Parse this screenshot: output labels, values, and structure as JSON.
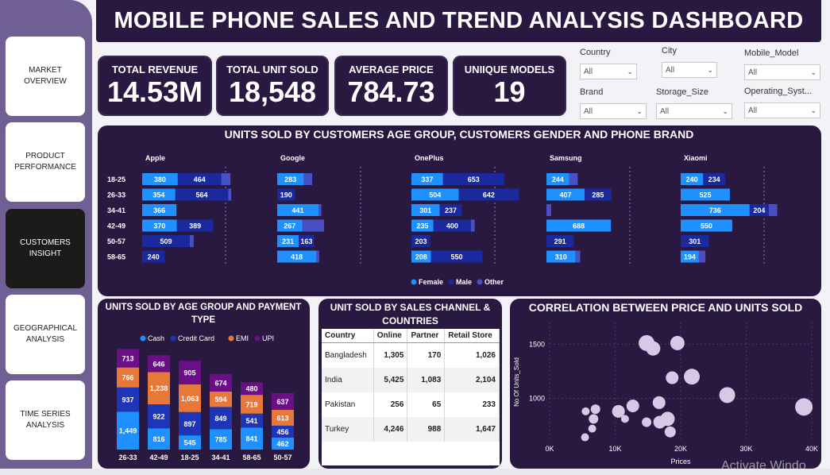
{
  "title": "MOBILE PHONE SALES AND TREND ANALYSIS DASHBOARD",
  "nav": [
    {
      "label": "MARKET OVERVIEW",
      "active": false
    },
    {
      "label": "PRODUCT PERFORMANCE",
      "active": false
    },
    {
      "label": "CUSTOMERS INSIGHT",
      "active": true
    },
    {
      "label": "GEOGRAPHICAL ANALYSIS",
      "active": false
    },
    {
      "label": "TIME SERIES ANALYSIS",
      "active": false
    }
  ],
  "kpis": [
    {
      "label": "TOTAL REVENUE",
      "value": "14.53M"
    },
    {
      "label": "TOTAL UNIT SOLD",
      "value": "18,548"
    },
    {
      "label": "AVERAGE PRICE",
      "value": "784.73"
    },
    {
      "label": "UNIIQUE MODELS",
      "value": "19"
    }
  ],
  "filters": [
    {
      "label": "Country",
      "value": "All"
    },
    {
      "label": "City",
      "value": "All"
    },
    {
      "label": "Mobile_Model",
      "value": "All"
    },
    {
      "label": "Brand",
      "value": "All"
    },
    {
      "label": "Storage_Size",
      "value": "All"
    },
    {
      "label": "Operating_Syst...",
      "value": "All"
    }
  ],
  "colors": {
    "panel": "#29183f",
    "female": "#1e90ff",
    "male": "#1a2a9c",
    "other": "#4a4fc4",
    "cash": "#1e90ff",
    "credit_card": "#1f35b8",
    "emi": "#e8783a",
    "upi": "#6a0f86",
    "scatter": "#d6c9e6"
  },
  "chart_data": [
    {
      "type": "bar",
      "title": "UNITS SOLD BY CUSTOMERS AGE GROUP, CUSTOMERS GENDER AND PHONE BRAND",
      "orientation": "horizontal",
      "stacked": true,
      "legend": [
        "Female",
        "Male",
        "Other"
      ],
      "legend_position": "bottom",
      "categories": [
        "18-25",
        "26-33",
        "34-41",
        "42-49",
        "50-57",
        "58-65"
      ],
      "brands": [
        {
          "name": "Apple",
          "female": [
            380,
            354,
            366,
            370,
            0,
            0
          ],
          "male": [
            464,
            564,
            0,
            389,
            509,
            240
          ],
          "other": [
            98,
            32,
            0,
            0,
            40,
            0
          ]
        },
        {
          "name": "Google",
          "female": [
            283,
            0,
            441,
            267,
            231,
            418
          ],
          "male": [
            0,
            190,
            0,
            0,
            163,
            0
          ],
          "other": [
            90,
            0,
            30,
            233,
            0,
            30
          ]
        },
        {
          "name": "OnePlus",
          "female": [
            337,
            504,
            301,
            235,
            0,
            208
          ],
          "male": [
            653,
            642,
            237,
            400,
            203,
            550
          ],
          "other": [
            0,
            0,
            0,
            40,
            0,
            0
          ]
        },
        {
          "name": "Samsung",
          "female": [
            244,
            407,
            0,
            688,
            0,
            310
          ],
          "male": [
            0,
            285,
            0,
            0,
            291,
            0
          ],
          "other": [
            90,
            0,
            50,
            0,
            0,
            50
          ]
        },
        {
          "name": "Xiaomi",
          "female": [
            240,
            525,
            736,
            550,
            0,
            194
          ],
          "male": [
            234,
            0,
            204,
            0,
            301,
            0
          ],
          "other": [
            0,
            0,
            90,
            0,
            0,
            70
          ]
        }
      ],
      "labels": [
        [
          "380",
          "464",
          "",
          "",
          "283",
          "",
          "337",
          "653",
          "244",
          "",
          "240",
          "234"
        ],
        [
          "354",
          "564",
          "",
          "190",
          "504",
          "642",
          "407",
          "285",
          "525",
          ""
        ],
        [
          "366",
          "",
          "441",
          "",
          "301",
          "237",
          "",
          "",
          "736",
          "204"
        ],
        [
          "370",
          "389",
          "267",
          "233",
          "235",
          "400",
          "688",
          "",
          "550",
          ""
        ],
        [
          "",
          "509",
          "231",
          "163",
          "",
          "203",
          "",
          "291",
          "",
          "301"
        ],
        [
          "",
          "240",
          "418",
          "",
          "208",
          "550",
          "310",
          "",
          "194",
          ""
        ]
      ]
    },
    {
      "type": "bar",
      "title": "UNITS SOLD BY AGE GROUP AND PAYMENT TYPE",
      "stacked": true,
      "legend_position": "top",
      "categories": [
        "26-33",
        "42-49",
        "18-25",
        "34-41",
        "58-65",
        "50-57"
      ],
      "series": [
        {
          "name": "Cash",
          "values": [
            1449,
            816,
            545,
            785,
            841,
            462
          ]
        },
        {
          "name": "Credit Card",
          "values": [
            937,
            922,
            897,
            849,
            541,
            456
          ]
        },
        {
          "name": "EMI",
          "values": [
            766,
            1238,
            1063,
            594,
            719,
            613
          ]
        },
        {
          "name": "UPI",
          "values": [
            713,
            646,
            905,
            674,
            480,
            637
          ]
        }
      ]
    },
    {
      "type": "table",
      "title": "UNIT SOLD BY SALES CHANNEL & COUNTRIES",
      "columns": [
        "Country",
        "Online",
        "Partner",
        "Retail Store"
      ],
      "rows": [
        [
          "Bangladesh",
          "1,305",
          "170",
          "1,026"
        ],
        [
          "India",
          "5,425",
          "1,083",
          "2,104"
        ],
        [
          "Pakistan",
          "256",
          "65",
          "233"
        ],
        [
          "Turkey",
          "4,246",
          "988",
          "1,647"
        ]
      ]
    },
    {
      "type": "scatter",
      "title": "CORRELATION BETWEEN PRICE AND UNITS SOLD",
      "xlabel": "Prices",
      "ylabel": "No Of Units_Sold",
      "xticks": [
        "0K",
        "10K",
        "20K",
        "30K",
        "40K"
      ],
      "yticks": [
        "1000",
        "1500"
      ],
      "xlim": [
        0,
        40000
      ],
      "ylim": [
        600,
        1700
      ],
      "points": [
        {
          "x": 5400,
          "y": 640,
          "size": 5
        },
        {
          "x": 6500,
          "y": 720,
          "size": 5
        },
        {
          "x": 6700,
          "y": 810,
          "size": 6
        },
        {
          "x": 5500,
          "y": 880,
          "size": 5
        },
        {
          "x": 7000,
          "y": 900,
          "size": 6
        },
        {
          "x": 10500,
          "y": 880,
          "size": 8
        },
        {
          "x": 11500,
          "y": 810,
          "size": 5
        },
        {
          "x": 12700,
          "y": 930,
          "size": 8
        },
        {
          "x": 14800,
          "y": 780,
          "size": 6
        },
        {
          "x": 16800,
          "y": 780,
          "size": 8
        },
        {
          "x": 18400,
          "y": 690,
          "size": 7
        },
        {
          "x": 18000,
          "y": 810,
          "size": 9
        },
        {
          "x": 16700,
          "y": 960,
          "size": 8
        },
        {
          "x": 18700,
          "y": 1190,
          "size": 8
        },
        {
          "x": 21700,
          "y": 1200,
          "size": 10
        },
        {
          "x": 14800,
          "y": 1510,
          "size": 10
        },
        {
          "x": 15800,
          "y": 1460,
          "size": 9
        },
        {
          "x": 19500,
          "y": 1510,
          "size": 9
        },
        {
          "x": 27100,
          "y": 1030,
          "size": 10
        },
        {
          "x": 38800,
          "y": 920,
          "size": 11
        }
      ]
    }
  ],
  "table_panel": {
    "title": "UNIT SOLD BY SALES CHANNEL & COUNTRIES"
  },
  "watermark": "Activate Windo"
}
